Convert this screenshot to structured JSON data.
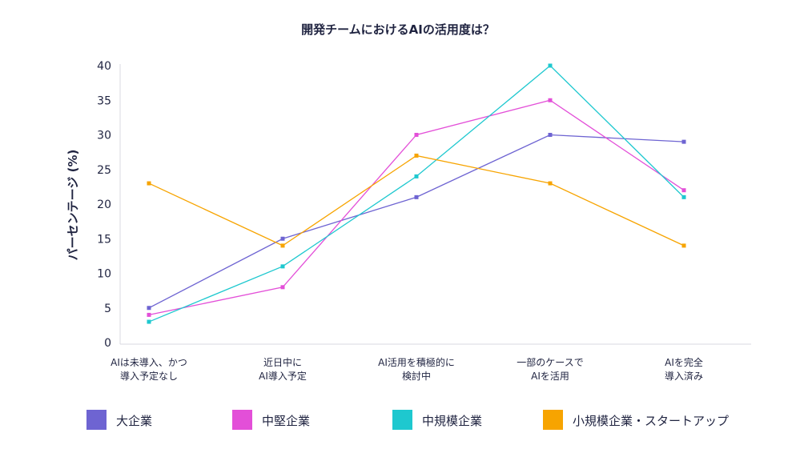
{
  "chart_data": {
    "type": "line",
    "title": "開発チームにおけるAIの活用度は？",
    "ylabel": "パーセンテージ (%)",
    "xlabel": "",
    "ylim": [
      0,
      40
    ],
    "yticks": [
      0,
      5,
      10,
      15,
      20,
      25,
      30,
      35,
      40
    ],
    "categories": [
      [
        "AIは未導入、かつ",
        "導入予定なし"
      ],
      [
        "近日中に",
        "AI導入予定"
      ],
      [
        "AI活用を積極的に",
        "検討中"
      ],
      [
        "一部のケースで",
        "AIを活用"
      ],
      [
        "AIを完全",
        "導入済み"
      ]
    ],
    "series": [
      {
        "name": "大企業",
        "color": "#6e64d2",
        "values": [
          5,
          15,
          21,
          30,
          29
        ]
      },
      {
        "name": "中堅企業",
        "color": "#e34fd8",
        "values": [
          4,
          8,
          30,
          35,
          22
        ]
      },
      {
        "name": "中規模企業",
        "color": "#1ec8cf",
        "values": [
          3,
          11,
          24,
          40,
          21
        ]
      },
      {
        "name": "小規模企業・スタートアップ",
        "color": "#f7a400",
        "values": [
          23,
          14,
          27,
          23,
          14
        ]
      }
    ],
    "grid": false,
    "legend_position": "bottom"
  }
}
